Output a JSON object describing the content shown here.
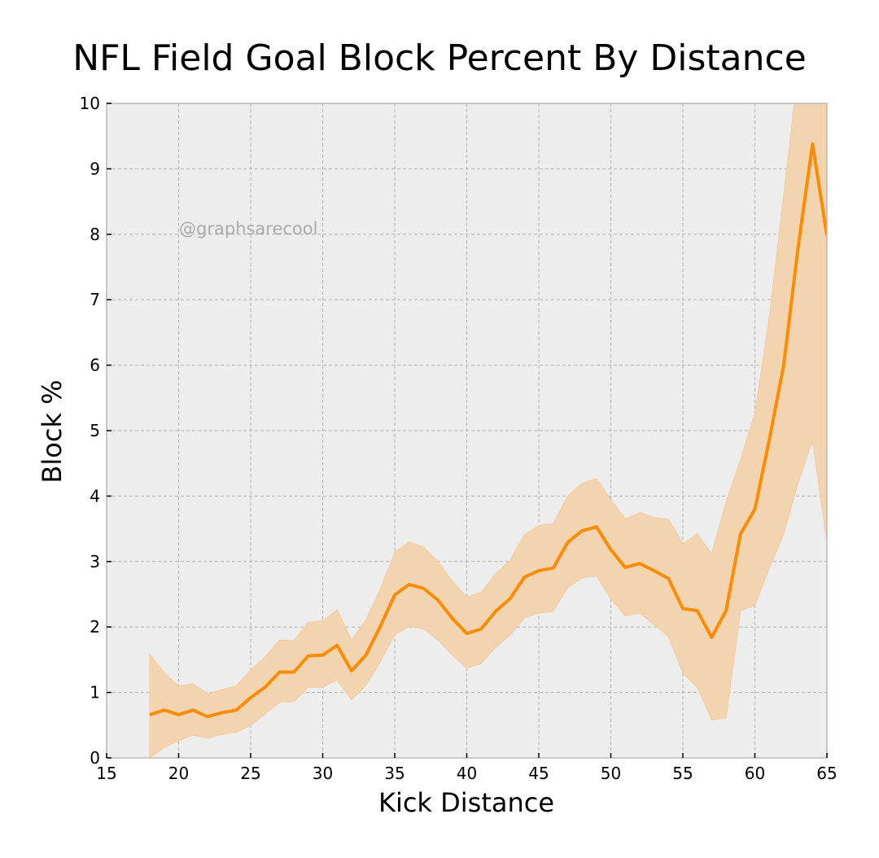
{
  "chart_data": {
    "type": "line",
    "title": "NFL Field Goal Block Percent By Distance",
    "xlabel": "Kick Distance",
    "ylabel": "Block %",
    "xlim": [
      15,
      65
    ],
    "ylim": [
      0,
      10
    ],
    "xticks": [
      15,
      20,
      25,
      30,
      35,
      40,
      45,
      50,
      55,
      60,
      65
    ],
    "yticks": [
      0,
      1,
      2,
      3,
      4,
      5,
      6,
      7,
      8,
      9,
      10
    ],
    "grid": true,
    "annotation": "@graphsarecool",
    "colors": {
      "line": "#ff8c00",
      "band": "#f2d5b0",
      "band_edge": "#f5c99a",
      "background": "#ededed",
      "grid": "#b0b0b0",
      "spine": "#bcbcbc"
    },
    "series": [
      {
        "name": "Block %",
        "x": [
          18,
          19,
          20,
          21,
          22,
          23,
          24,
          25,
          26,
          27,
          28,
          29,
          30,
          31,
          32,
          33,
          34,
          35,
          36,
          37,
          38,
          39,
          40,
          41,
          42,
          43,
          44,
          45,
          46,
          47,
          48,
          49,
          50,
          51,
          52,
          53,
          54,
          55,
          56,
          57,
          58,
          59,
          60,
          61,
          62,
          63,
          64,
          65
        ],
        "y": [
          0.66,
          0.73,
          0.66,
          0.73,
          0.63,
          0.69,
          0.73,
          0.92,
          1.08,
          1.31,
          1.31,
          1.56,
          1.57,
          1.72,
          1.33,
          1.57,
          2.01,
          2.49,
          2.65,
          2.59,
          2.41,
          2.13,
          1.9,
          1.97,
          2.24,
          2.43,
          2.76,
          2.86,
          2.9,
          3.29,
          3.47,
          3.53,
          3.18,
          2.91,
          2.97,
          2.86,
          2.74,
          2.28,
          2.25,
          1.84,
          2.25,
          3.42,
          3.8,
          4.86,
          6.0,
          7.8,
          9.38,
          7.98
        ],
        "upper": [
          1.58,
          1.3,
          1.1,
          1.13,
          0.98,
          1.04,
          1.1,
          1.34,
          1.54,
          1.8,
          1.79,
          2.07,
          2.09,
          2.26,
          1.8,
          2.11,
          2.58,
          3.14,
          3.3,
          3.22,
          3.0,
          2.7,
          2.46,
          2.53,
          2.81,
          3.02,
          3.41,
          3.55,
          3.58,
          4.0,
          4.19,
          4.27,
          3.95,
          3.65,
          3.75,
          3.67,
          3.65,
          3.27,
          3.42,
          3.12,
          3.91,
          4.55,
          5.27,
          6.73,
          8.6,
          10.5,
          10.5,
          10.5
        ],
        "lower": [
          0.0,
          0.16,
          0.26,
          0.35,
          0.3,
          0.36,
          0.39,
          0.5,
          0.67,
          0.85,
          0.86,
          1.08,
          1.08,
          1.19,
          0.89,
          1.11,
          1.47,
          1.88,
          2.01,
          1.97,
          1.8,
          1.57,
          1.37,
          1.44,
          1.69,
          1.87,
          2.14,
          2.21,
          2.24,
          2.6,
          2.75,
          2.78,
          2.43,
          2.17,
          2.21,
          2.04,
          1.85,
          1.3,
          1.08,
          0.58,
          0.61,
          2.25,
          2.33,
          2.9,
          3.42,
          4.2,
          4.85,
          3.3
        ]
      }
    ]
  }
}
